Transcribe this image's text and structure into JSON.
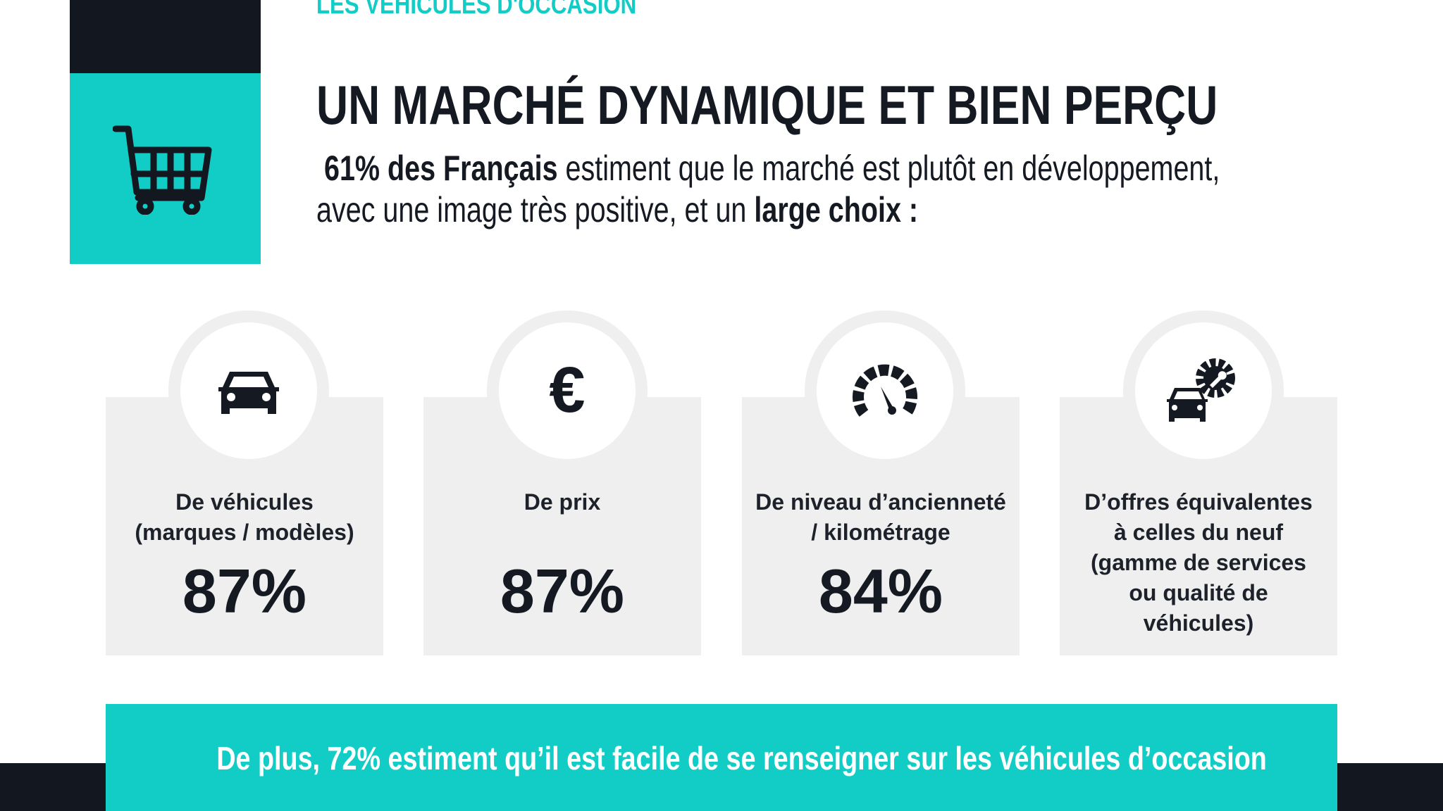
{
  "header": {
    "kicker": "LES VÉHICULES D'OCCASION",
    "title": "UN MARCHÉ DYNAMIQUE ET BIEN PERÇU",
    "intro": {
      "bold1": "61% des Français",
      "text1": " estiment que le marché est plutôt en développement,",
      "text2": "avec une image très positive, et un ",
      "bold2": "large choix :"
    }
  },
  "colors": {
    "accent": "#12cdc6",
    "dark": "#131820",
    "card": "#efefef"
  },
  "cards": [
    {
      "icon": "car-icon",
      "label1": "De véhicules",
      "label2": "(marques / modèles)",
      "value": "87%"
    },
    {
      "icon": "euro-icon",
      "label1": "De prix",
      "label2": "",
      "value": "87%"
    },
    {
      "icon": "speedometer-icon",
      "label1": "De niveau d’ancienneté",
      "label2": "/ kilométrage",
      "value": "84%"
    },
    {
      "icon": "car-service-icon",
      "label1": "D’offres équivalentes",
      "label2": "à celles du neuf",
      "label3": "(gamme de services",
      "label4": "ou qualité de",
      "label5": "véhicules)"
    }
  ],
  "footer": {
    "text": "De plus, 72% estiment qu’il est facile de se renseigner sur les véhicules d’occasion"
  }
}
